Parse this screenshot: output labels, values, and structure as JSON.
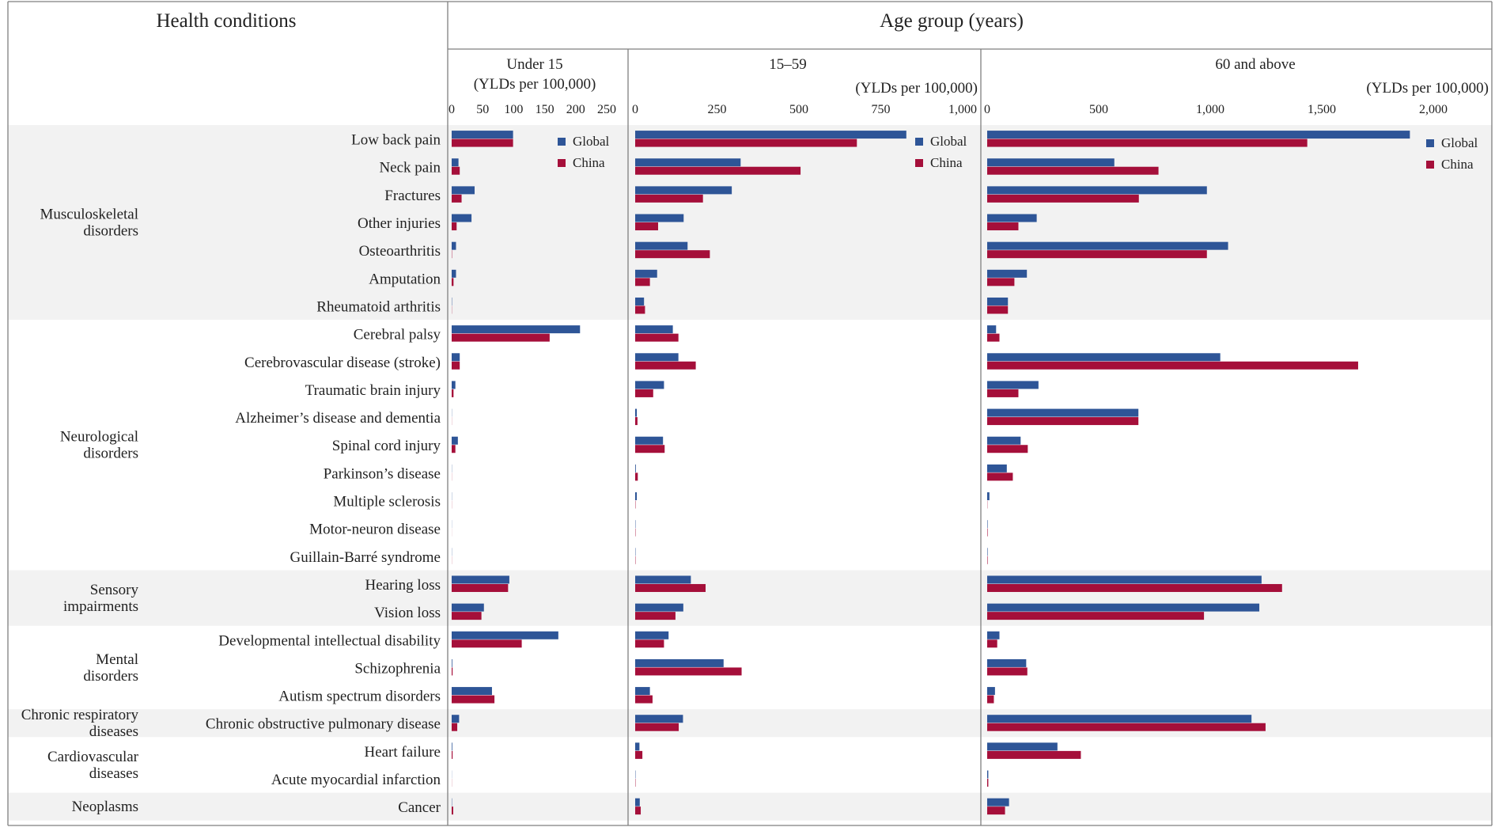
{
  "header": {
    "conditions_title": "Health conditions",
    "age_title": "Age group (years)"
  },
  "colors": {
    "global": "#2E5597",
    "china": "#A50F3A",
    "band": "#F2F2F2",
    "frame": "#7F7F7F"
  },
  "chart_data": {
    "type": "bar",
    "orientation": "horizontal",
    "legend_position": "top-right of each panel",
    "grid": false,
    "groups": [
      {
        "label": "Musculoskeletal disorders",
        "shaded": true,
        "start": 0,
        "count": 7
      },
      {
        "label": "Neurological disorders",
        "shaded": false,
        "start": 7,
        "count": 9
      },
      {
        "label": "Sensory impairments",
        "shaded": true,
        "start": 16,
        "count": 2
      },
      {
        "label": "Mental disorders",
        "shaded": false,
        "start": 18,
        "count": 3
      },
      {
        "label": "Chronic respiratory diseases",
        "shaded": true,
        "start": 21,
        "count": 1
      },
      {
        "label": "Cardiovascular diseases",
        "shaded": false,
        "start": 22,
        "count": 2
      },
      {
        "label": "Neoplasms",
        "shaded": true,
        "start": 24,
        "count": 1
      }
    ],
    "categories": [
      "Low back pain",
      "Neck pain",
      "Fractures",
      "Other injuries",
      "Osteoarthritis",
      "Amputation",
      "Rheumatoid arthritis",
      "Cerebral palsy",
      "Cerebrovascular disease (stroke)",
      "Traumatic brain injury",
      "Alzheimer’s disease and dementia",
      "Spinal cord injury",
      "Parkinson’s disease",
      "Multiple sclerosis",
      "Motor-neuron disease",
      "Guillain-Barré syndrome",
      "Hearing loss",
      "Vision loss",
      "Developmental intellectual disability",
      "Schizophrenia",
      "Autism spectrum disorders",
      "Chronic obstructive pulmonary disease",
      "Heart failure",
      "Acute myocardial infarction",
      "Cancer"
    ],
    "panels": [
      {
        "title": "Under 15",
        "unit": "(YLDs per 100,000)",
        "xlim": [
          0,
          250
        ],
        "ticks": [
          0,
          50,
          100,
          150,
          200,
          250
        ],
        "tick_labels": [
          "0",
          "50",
          "100",
          "150",
          "200",
          "250"
        ],
        "series": [
          {
            "name": "Global",
            "values": [
              99,
              11,
              37,
              32,
              7,
              7,
              0.5,
              207,
              13,
              6,
              0.3,
              10,
              0.3,
              0.3,
              0.2,
              0.3,
              93,
              52,
              172,
              1,
              65,
              12,
              1,
              0.2,
              0.5
            ]
          },
          {
            "name": "China",
            "values": [
              99,
              13,
              16,
              8,
              0.5,
              3,
              0.3,
              158,
              13,
              3,
              0.2,
              6,
              0.2,
              0.2,
              0.1,
              0.2,
              91,
              48,
              113,
              1.5,
              69,
              9,
              1.5,
              0.2,
              2.5
            ]
          }
        ]
      },
      {
        "title": "15–59",
        "unit": "(YLDs per 100,000)",
        "xlim": [
          0,
          1000
        ],
        "ticks": [
          0,
          250,
          500,
          750,
          1000
        ],
        "tick_labels": [
          "0",
          "250",
          "500",
          "750",
          "1,000"
        ],
        "series": [
          {
            "name": "Global",
            "values": [
              828,
              322,
              295,
              148,
              160,
              67,
              27,
              115,
              132,
              88,
              5,
              85,
              2,
              5,
              1,
              1,
              170,
              147,
              102,
              270,
              45,
              146,
              13,
              1,
              14
            ]
          },
          {
            "name": "China",
            "values": [
              677,
              505,
              207,
              70,
              228,
              45,
              30,
              132,
              185,
              55,
              7,
              90,
              8,
              1,
              1,
              1,
              215,
              123,
              88,
              325,
              53,
              133,
              22,
              1,
              17
            ]
          }
        ]
      },
      {
        "title": "60 and above",
        "unit": "(YLDs per 100,000)",
        "xlim": [
          0,
          2000
        ],
        "ticks": [
          0,
          500,
          1000,
          1500,
          2000
        ],
        "tick_labels": [
          "0",
          "500",
          "1,000",
          "1,500",
          "2,000"
        ],
        "series": [
          {
            "name": "Global",
            "values": [
              1895,
              570,
              985,
              222,
              1080,
              178,
              93,
              40,
              1045,
              230,
              678,
              150,
              88,
              10,
              2,
              2,
              1230,
              1220,
              55,
              175,
              35,
              1185,
              315,
              5,
              98
            ]
          },
          {
            "name": "China",
            "values": [
              1435,
              768,
              680,
              140,
              985,
              122,
              93,
              55,
              1663,
              140,
              678,
              182,
              115,
              1,
              2,
              2,
              1322,
              972,
              45,
              180,
              30,
              1248,
              420,
              5,
              80
            ]
          }
        ]
      }
    ]
  }
}
